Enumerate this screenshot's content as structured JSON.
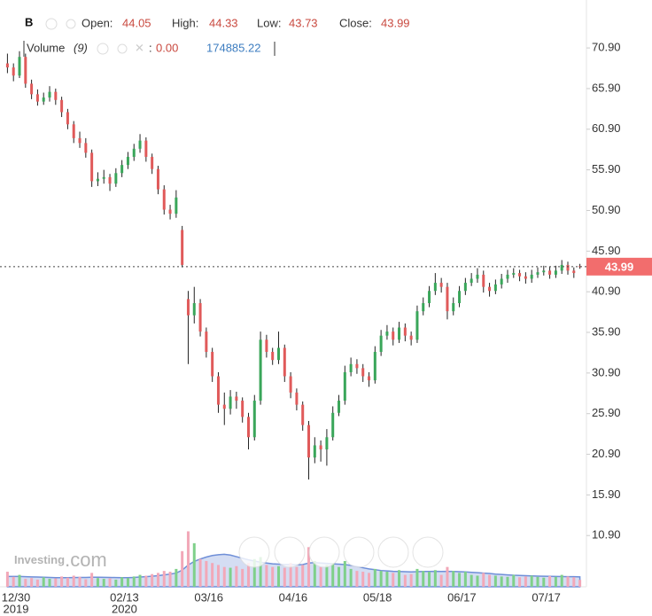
{
  "chart_data": {
    "type": "candlestick",
    "header": {
      "symbol": "B",
      "open_label": "Open:",
      "high_label": "High:",
      "low_label": "Low:",
      "close_label": "Close:",
      "volume_label": "Volume",
      "volume_period": "(9)",
      "volume_ma_readout": "0.00"
    },
    "watermark": {
      "brand": "Investing",
      "suffix": ".com"
    },
    "categories": [
      null,
      null,
      "12/30",
      null,
      null,
      null,
      null,
      null,
      null,
      null,
      null,
      null,
      null,
      null,
      null,
      null,
      null,
      null,
      null,
      null,
      "02/13",
      null,
      null,
      null,
      null,
      null,
      null,
      null,
      null,
      null,
      null,
      null,
      null,
      null,
      "03/16",
      null,
      null,
      null,
      null,
      null,
      null,
      null,
      null,
      null,
      null,
      null,
      null,
      null,
      "04/16",
      null,
      null,
      null,
      null,
      null,
      null,
      null,
      null,
      null,
      null,
      null,
      null,
      null,
      "05/18",
      null,
      null,
      null,
      null,
      null,
      null,
      null,
      null,
      null,
      null,
      null,
      null,
      null,
      "06/17",
      null,
      null,
      null,
      null,
      null,
      null,
      null,
      null,
      null,
      null,
      null,
      null,
      null,
      "07/17",
      null,
      null,
      null,
      null,
      null
    ],
    "category_years": [
      null,
      null,
      "2019",
      null,
      null,
      null,
      null,
      null,
      null,
      null,
      null,
      null,
      null,
      null,
      null,
      null,
      null,
      null,
      null,
      null,
      "2020",
      null,
      null,
      null,
      null,
      null,
      null,
      null,
      null,
      null,
      null,
      null,
      null,
      null,
      null,
      null,
      null,
      null,
      null,
      null,
      null,
      null,
      null,
      null,
      null,
      null,
      null,
      null,
      null,
      null,
      null,
      null,
      null,
      null,
      null,
      null,
      null,
      null,
      null,
      null,
      null,
      null,
      null,
      null,
      null,
      null,
      null,
      null,
      null,
      null,
      null,
      null,
      null,
      null,
      null,
      null,
      null,
      null,
      null,
      null,
      null,
      null,
      null,
      null,
      null,
      null,
      null,
      null,
      null,
      null,
      null,
      null,
      null,
      null,
      null,
      null
    ],
    "open": [
      69.0,
      68.5,
      67.5,
      69.8,
      66.5,
      65.2,
      64.3,
      64.8,
      65.5,
      64.5,
      63.0,
      61.5,
      59.8,
      59.2,
      58.0,
      54.5,
      54.8,
      55.0,
      54.2,
      55.5,
      56.5,
      57.5,
      58.5,
      59.5,
      57.5,
      56.0,
      53.5,
      51.0,
      50.5,
      48.5,
      40.0,
      38.0,
      39.5,
      36.0,
      33.5,
      30.5,
      27.0,
      26.5,
      28.0,
      27.5,
      25.5,
      23.0,
      27.5,
      35.0,
      33.5,
      32.5,
      34.0,
      30.5,
      28.5,
      27.0,
      24.5,
      20.5,
      22.0,
      21.5,
      23.0,
      26.0,
      27.5,
      31.0,
      32.0,
      31.5,
      30.5,
      30.0,
      33.5,
      35.5,
      36.0,
      35.0,
      36.5,
      35.5,
      35.0,
      38.5,
      39.5,
      41.0,
      42.0,
      41.5,
      38.5,
      39.5,
      41.0,
      42.0,
      42.5,
      43.0,
      41.5,
      41.0,
      41.8,
      42.5,
      43.0,
      43.2,
      42.8,
      42.5,
      43.0,
      43.3,
      43.5,
      43.0,
      43.5,
      44.2,
      43.5,
      44.05
    ],
    "high": [
      70.2,
      69.0,
      70.5,
      70.2,
      67.0,
      65.8,
      65.4,
      66.2,
      65.9,
      64.9,
      63.4,
      61.9,
      60.6,
      59.8,
      58.4,
      55.6,
      55.9,
      55.4,
      56.1,
      57.1,
      58.1,
      59.1,
      60.3,
      59.9,
      57.9,
      56.4,
      54.0,
      51.6,
      53.4,
      49.0,
      41.0,
      41.5,
      40.0,
      36.5,
      34.0,
      31.0,
      28.5,
      28.8,
      28.6,
      27.9,
      26.0,
      28.2,
      36.0,
      35.6,
      34.0,
      36.0,
      34.4,
      31.0,
      29.0,
      27.4,
      25.0,
      23.0,
      22.6,
      24.0,
      26.8,
      28.2,
      31.8,
      32.8,
      32.6,
      32.0,
      31.0,
      34.2,
      36.2,
      36.8,
      36.5,
      37.2,
      37.0,
      36.0,
      39.2,
      40.2,
      41.6,
      43.2,
      42.6,
      42.0,
      40.2,
      41.6,
      42.6,
      43.2,
      43.8,
      43.5,
      42.0,
      42.4,
      43.1,
      43.6,
      43.8,
      43.6,
      43.3,
      43.6,
      43.9,
      44.1,
      44.0,
      44.1,
      44.8,
      44.6,
      43.9,
      44.33
    ],
    "low": [
      67.8,
      66.8,
      67.2,
      66.0,
      64.6,
      63.8,
      63.9,
      64.3,
      63.9,
      62.4,
      60.9,
      59.2,
      58.6,
      57.4,
      53.8,
      53.9,
      54.2,
      53.3,
      53.8,
      55.0,
      56.0,
      57.0,
      58.0,
      56.9,
      55.4,
      52.9,
      50.4,
      49.8,
      50.0,
      43.9,
      32.0,
      37.0,
      35.4,
      32.8,
      29.8,
      26.0,
      24.5,
      25.8,
      26.5,
      24.8,
      21.5,
      22.6,
      27.0,
      32.8,
      31.9,
      32.0,
      29.8,
      27.8,
      26.3,
      23.8,
      17.8,
      19.8,
      20.0,
      19.5,
      22.6,
      25.6,
      27.0,
      30.5,
      30.8,
      29.8,
      29.2,
      29.6,
      33.0,
      35.0,
      34.3,
      34.6,
      34.8,
      34.3,
      34.6,
      38.0,
      39.0,
      40.5,
      40.8,
      37.5,
      38.0,
      39.0,
      40.5,
      41.6,
      42.0,
      40.8,
      40.3,
      40.6,
      41.3,
      42.0,
      42.6,
      42.2,
      41.9,
      42.0,
      42.6,
      42.9,
      42.5,
      42.6,
      43.1,
      43.0,
      42.6,
      43.73
    ],
    "close": [
      68.5,
      67.5,
      69.8,
      66.5,
      65.2,
      64.3,
      64.8,
      65.5,
      64.5,
      63.0,
      61.5,
      59.8,
      59.2,
      58.0,
      54.5,
      54.8,
      55.0,
      54.2,
      55.5,
      56.5,
      57.5,
      58.5,
      59.5,
      57.5,
      56.0,
      53.5,
      51.0,
      50.5,
      52.5,
      44.2,
      38.0,
      39.5,
      36.0,
      33.5,
      30.5,
      27.0,
      26.5,
      28.0,
      27.5,
      25.5,
      23.0,
      27.5,
      35.0,
      33.5,
      32.5,
      34.0,
      30.5,
      28.5,
      27.0,
      24.5,
      20.5,
      22.0,
      21.5,
      23.0,
      26.0,
      27.5,
      31.0,
      32.0,
      31.5,
      30.5,
      30.0,
      33.5,
      35.5,
      36.0,
      35.0,
      36.5,
      35.5,
      35.0,
      38.5,
      39.5,
      41.0,
      42.0,
      41.5,
      38.5,
      39.5,
      41.0,
      42.0,
      42.5,
      43.0,
      41.5,
      41.0,
      41.8,
      42.5,
      43.0,
      43.2,
      42.8,
      42.5,
      43.0,
      43.3,
      43.5,
      43.0,
      43.5,
      44.2,
      43.5,
      43.2,
      43.99
    ],
    "volume": [
      380000,
      250000,
      300000,
      200000,
      220000,
      180000,
      240000,
      200000,
      210000,
      260000,
      230000,
      280000,
      250000,
      190000,
      350000,
      220000,
      200000,
      210000,
      180000,
      240000,
      220000,
      260000,
      300000,
      280000,
      320000,
      350000,
      400000,
      380000,
      450000,
      900000,
      1400000,
      1100000,
      700000,
      650000,
      600000,
      550000,
      500000,
      480000,
      520000,
      450000,
      600000,
      700000,
      750000,
      550000,
      500000,
      520000,
      480000,
      600000,
      500000,
      550000,
      1000000,
      650000,
      500000,
      550000,
      600000,
      500000,
      650000,
      450000,
      400000,
      380000,
      350000,
      450000,
      400000,
      380000,
      350000,
      420000,
      300000,
      320000,
      450000,
      400000,
      380000,
      420000,
      300000,
      500000,
      400000,
      350000,
      380000,
      300000,
      280000,
      350000,
      300000,
      280000,
      260000,
      250000,
      300000,
      240000,
      260000,
      280000,
      250000,
      230000,
      270000,
      250000,
      300000,
      260000,
      240000,
      174885.22
    ],
    "volume_ma": [
      260000,
      260000,
      260000,
      255000,
      250000,
      245000,
      240000,
      235000,
      230000,
      230000,
      230000,
      232000,
      235000,
      235000,
      240000,
      240000,
      238000,
      235000,
      232000,
      230000,
      230000,
      235000,
      245000,
      255000,
      265000,
      280000,
      300000,
      320000,
      345000,
      420000,
      550000,
      640000,
      700000,
      750000,
      790000,
      810000,
      820000,
      800000,
      760000,
      720000,
      680000,
      650000,
      620000,
      600000,
      580000,
      570000,
      560000,
      560000,
      555000,
      560000,
      600000,
      610000,
      600000,
      590000,
      580000,
      570000,
      560000,
      540000,
      510000,
      480000,
      450000,
      430000,
      410000,
      400000,
      390000,
      385000,
      380000,
      375000,
      380000,
      385000,
      385000,
      390000,
      385000,
      390000,
      385000,
      380000,
      375000,
      365000,
      355000,
      345000,
      335000,
      320000,
      310000,
      300000,
      290000,
      285000,
      280000,
      275000,
      270000,
      265000,
      262000,
      260000,
      258000,
      256000,
      254000,
      250000
    ],
    "vlim": [
      0,
      1500000
    ],
    "ylim": [
      4.6,
      76.8
    ],
    "yticks": [
      {
        "value": 10.9,
        "label": "10.90"
      },
      {
        "value": 15.9,
        "label": "15.90"
      },
      {
        "value": 20.9,
        "label": "20.90"
      },
      {
        "value": 25.9,
        "label": "25.90"
      },
      {
        "value": 30.9,
        "label": "30.90"
      },
      {
        "value": 35.9,
        "label": "35.90"
      },
      {
        "value": 40.9,
        "label": "40.90"
      },
      {
        "value": 45.9,
        "label": "45.90"
      },
      {
        "value": 50.9,
        "label": "50.90"
      },
      {
        "value": 55.9,
        "label": "55.90"
      },
      {
        "value": 60.9,
        "label": "60.90"
      },
      {
        "value": 65.9,
        "label": "65.90"
      },
      {
        "value": 70.9,
        "label": "70.90"
      }
    ],
    "grid": false,
    "up_color": "#3aa65a",
    "down_color": "#e05a5a",
    "volume_up_color": "#7fd08a",
    "volume_down_color": "#f2a8b8",
    "volume_ma_color": "#6f8fd8",
    "last_price_color": "#f26d6d"
  }
}
